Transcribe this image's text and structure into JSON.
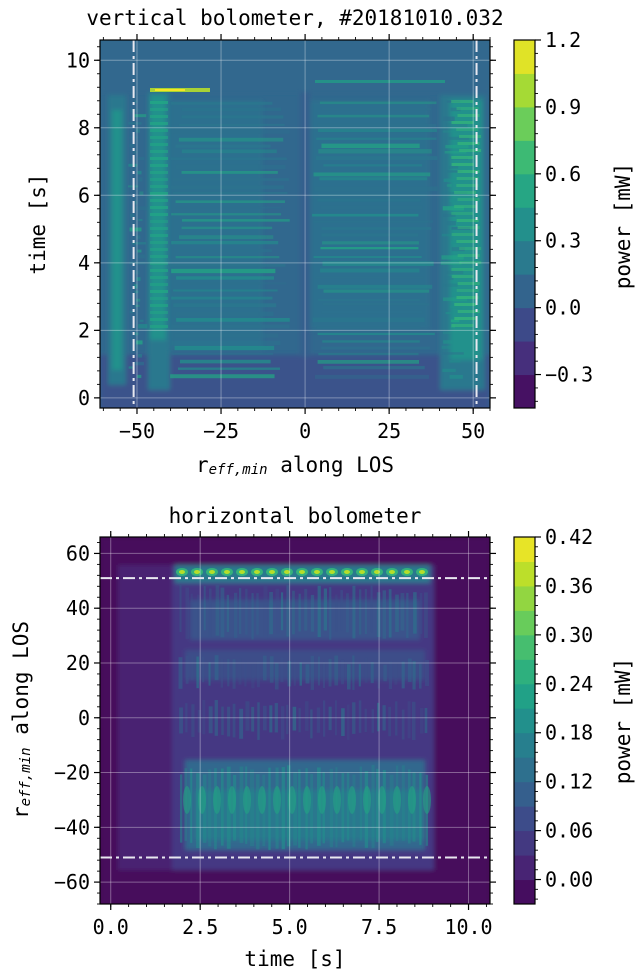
{
  "chart_data": [
    {
      "type": "heatmap",
      "title": "vertical bolometer, #20181010.032",
      "xlabel": "r",
      "xlabel_sub": "eff,min",
      "xlabel_rest": " along LOS",
      "ylabel": "time [s]",
      "xlim": [
        -61,
        55
      ],
      "ylim": [
        -0.3,
        10.6
      ],
      "xticks": [
        -50,
        -25,
        0,
        25,
        50
      ],
      "xtick_labels": [
        "−50",
        "−25",
        "0",
        "25",
        "50"
      ],
      "yticks": [
        0,
        2,
        4,
        6,
        8,
        10
      ],
      "ytick_labels": [
        "0",
        "2",
        "4",
        "6",
        "8",
        "10"
      ],
      "grid": true,
      "reference_lines": {
        "orientation": "vertical",
        "values": [
          -51,
          51
        ],
        "style": "dash-dot",
        "color": "#e8e8f0"
      },
      "colorbar": {
        "label": "power [mW]",
        "range": [
          -0.45,
          1.2
        ],
        "ticks": [
          -0.3,
          0.0,
          0.3,
          0.6,
          0.9,
          1.2
        ],
        "tick_labels": [
          "−0.3",
          "0.0",
          "0.3",
          "0.6",
          "0.9",
          "1.2"
        ],
        "level_step": 0.15
      },
      "colormap": "viridis"
    },
    {
      "type": "heatmap",
      "title": "horizontal bolometer",
      "xlabel": "time [s]",
      "ylabel": "r",
      "ylabel_sub": "eff,min",
      "ylabel_rest": " along LOS",
      "xlim": [
        -0.3,
        10.6
      ],
      "ylim": [
        -68,
        66
      ],
      "xticks": [
        0,
        2.5,
        5,
        7.5,
        10
      ],
      "xtick_labels": [
        "0.0",
        "2.5",
        "5.0",
        "7.5",
        "10.0"
      ],
      "yticks": [
        -60,
        -40,
        -20,
        0,
        20,
        40,
        60
      ],
      "ytick_labels": [
        "−60",
        "−40",
        "−20",
        "0",
        "20",
        "40",
        "60"
      ],
      "grid": true,
      "reference_lines": {
        "orientation": "horizontal",
        "values": [
          -51,
          51
        ],
        "style": "dash-dot",
        "color": "#e8e8f0"
      },
      "colorbar": {
        "label": "power [mW]",
        "range": [
          -0.03,
          0.42
        ],
        "ticks": [
          0.0,
          0.06,
          0.12,
          0.18,
          0.24,
          0.3,
          0.36,
          0.42
        ],
        "tick_labels": [
          "0.00",
          "0.06",
          "0.12",
          "0.18",
          "0.24",
          "0.30",
          "0.36",
          "0.42"
        ],
        "level_step": 0.03
      },
      "colormap": "viridis"
    }
  ]
}
